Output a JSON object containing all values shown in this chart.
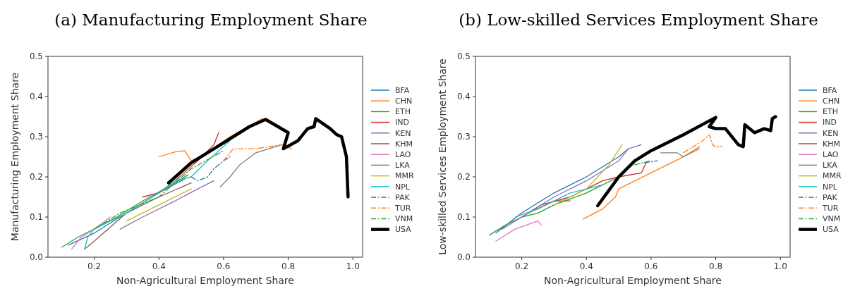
{
  "chart_data": [
    {
      "type": "line",
      "title": "(a) Manufacturing Employment Share",
      "xlabel": "Non-Agricultural Employment Share",
      "ylabel": "Manufacturing Employment Share",
      "xlim": [
        0.057,
        1.03
      ],
      "ylim": [
        0,
        0.5
      ],
      "xticks": [
        {
          "value": 0.2,
          "label": "0.2"
        },
        {
          "value": 0.4,
          "label": "0.4"
        },
        {
          "value": 0.6,
          "label": "0.6"
        },
        {
          "value": 0.8,
          "label": "0.8"
        },
        {
          "value": 1.0,
          "label": "1.0"
        }
      ],
      "yticks": [
        {
          "value": 0,
          "label": "0.0"
        },
        {
          "value": 0.1,
          "label": "0.1"
        },
        {
          "value": 0.2,
          "label": "0.2"
        },
        {
          "value": 0.3,
          "label": "0.3"
        },
        {
          "value": 0.4,
          "label": "0.4"
        },
        {
          "value": 0.5,
          "label": "0.5"
        }
      ],
      "legend": "right",
      "grid": false,
      "series": [
        {
          "name": "BFA",
          "color": "#1f77b4",
          "x": [
            0.12,
            0.2,
            0.3,
            0.4,
            0.48
          ],
          "values": [
            0.03,
            0.06,
            0.11,
            0.16,
            0.195
          ]
        },
        {
          "name": "CHN",
          "color": "#ff7f0e",
          "x": [
            0.4,
            0.45,
            0.48,
            0.5,
            0.55,
            0.62,
            0.72
          ],
          "values": [
            0.25,
            0.262,
            0.265,
            0.24,
            0.26,
            0.3,
            0.345
          ]
        },
        {
          "name": "ETH",
          "color": "#2ca02c",
          "x": [
            0.1,
            0.15,
            0.2,
            0.27,
            0.35,
            0.45,
            0.49
          ],
          "values": [
            0.025,
            0.05,
            0.07,
            0.1,
            0.14,
            0.185,
            0.205
          ]
        },
        {
          "name": "IND",
          "color": "#d62728",
          "x": [
            0.35,
            0.4,
            0.45,
            0.52,
            0.57,
            0.585
          ],
          "values": [
            0.15,
            0.16,
            0.19,
            0.24,
            0.28,
            0.31
          ]
        },
        {
          "name": "KEN",
          "color": "#9467bd",
          "x": [
            0.28,
            0.35,
            0.45,
            0.52,
            0.57
          ],
          "values": [
            0.07,
            0.1,
            0.14,
            0.17,
            0.19
          ]
        },
        {
          "name": "KHM",
          "color": "#8c564b",
          "x": [
            0.17,
            0.2,
            0.3,
            0.4,
            0.5
          ],
          "values": [
            0.02,
            0.04,
            0.11,
            0.15,
            0.185
          ]
        },
        {
          "name": "LAO",
          "color": "#e377c2",
          "x": [
            0.13,
            0.16,
            0.2,
            0.25
          ],
          "values": [
            0.02,
            0.05,
            0.07,
            0.1
          ]
        },
        {
          "name": "LKA",
          "color": "#7f7f7f",
          "x": [
            0.59,
            0.62,
            0.65,
            0.7,
            0.78
          ],
          "values": [
            0.175,
            0.2,
            0.23,
            0.26,
            0.28
          ]
        },
        {
          "name": "MMR",
          "color": "#bcbd22",
          "x": [
            0.3,
            0.4,
            0.5
          ],
          "values": [
            0.09,
            0.13,
            0.17
          ]
        },
        {
          "name": "NPL",
          "color": "#17becf",
          "x": [
            0.17,
            0.18,
            0.2,
            0.3,
            0.38,
            0.45,
            0.5,
            0.55,
            0.62
          ],
          "values": [
            0.02,
            0.05,
            0.07,
            0.11,
            0.15,
            0.19,
            0.2,
            0.24,
            0.29
          ]
        },
        {
          "name": "PAK",
          "color": "#1f77b4",
          "line_style": "dashed",
          "x": [
            0.5,
            0.52,
            0.55,
            0.57,
            0.6,
            0.62
          ],
          "values": [
            0.2,
            0.19,
            0.2,
            0.22,
            0.24,
            0.25
          ]
        },
        {
          "name": "TUR",
          "color": "#ff7f0e",
          "line_style": "dashed",
          "x": [
            0.6,
            0.63,
            0.7,
            0.78,
            0.81
          ],
          "values": [
            0.24,
            0.27,
            0.27,
            0.28,
            0.27
          ]
        },
        {
          "name": "VNM",
          "color": "#2ca02c",
          "line_style": "dashed",
          "x": [
            0.2,
            0.28,
            0.4,
            0.5,
            0.6
          ],
          "values": [
            0.07,
            0.11,
            0.15,
            0.22,
            0.265
          ]
        },
        {
          "name": "USA",
          "color": "#000000",
          "x": [
            0.43,
            0.5,
            0.6,
            0.68,
            0.73,
            0.8,
            0.785,
            0.83,
            0.86,
            0.88,
            0.885,
            0.93,
            0.95,
            0.965,
            0.98,
            0.985
          ],
          "values": [
            0.185,
            0.235,
            0.285,
            0.325,
            0.343,
            0.31,
            0.27,
            0.29,
            0.32,
            0.325,
            0.345,
            0.32,
            0.305,
            0.3,
            0.25,
            0.15
          ]
        }
      ]
    },
    {
      "type": "line",
      "title": "(b) Low-skilled Services Employment Share",
      "xlabel": "Non-Agricultural Employment Share",
      "ylabel": "Low-skilled Services Employment Share",
      "xlim": [
        0.057,
        1.03
      ],
      "ylim": [
        0,
        0.5
      ],
      "xticks": [
        {
          "value": 0.2,
          "label": "0.2"
        },
        {
          "value": 0.4,
          "label": "0.4"
        },
        {
          "value": 0.6,
          "label": "0.6"
        },
        {
          "value": 0.8,
          "label": "0.8"
        },
        {
          "value": 1.0,
          "label": "1.0"
        }
      ],
      "yticks": [
        {
          "value": 0,
          "label": "0.0"
        },
        {
          "value": 0.1,
          "label": "0.1"
        },
        {
          "value": 0.2,
          "label": "0.2"
        },
        {
          "value": 0.3,
          "label": "0.3"
        },
        {
          "value": 0.4,
          "label": "0.4"
        },
        {
          "value": 0.5,
          "label": "0.5"
        }
      ],
      "legend": "right",
      "grid": false,
      "series": [
        {
          "name": "BFA",
          "color": "#1f77b4",
          "x": [
            0.12,
            0.2,
            0.3,
            0.4,
            0.5,
            0.53
          ],
          "values": [
            0.06,
            0.11,
            0.16,
            0.2,
            0.25,
            0.27
          ]
        },
        {
          "name": "CHN",
          "color": "#ff7f0e",
          "x": [
            0.39,
            0.45,
            0.49,
            0.5,
            0.55,
            0.65,
            0.75
          ],
          "values": [
            0.095,
            0.12,
            0.15,
            0.17,
            0.19,
            0.23,
            0.27
          ]
        },
        {
          "name": "ETH",
          "color": "#2ca02c",
          "x": [
            0.1,
            0.15,
            0.2,
            0.25,
            0.3,
            0.4,
            0.5
          ],
          "values": [
            0.055,
            0.08,
            0.1,
            0.11,
            0.13,
            0.16,
            0.2
          ]
        },
        {
          "name": "IND",
          "color": "#d62728",
          "x": [
            0.2,
            0.26,
            0.35,
            0.45,
            0.5,
            0.57,
            0.585
          ],
          "values": [
            0.1,
            0.13,
            0.15,
            0.19,
            0.2,
            0.21,
            0.235
          ]
        },
        {
          "name": "KEN",
          "color": "#9467bd",
          "x": [
            0.14,
            0.2,
            0.3,
            0.4,
            0.5,
            0.53,
            0.57
          ],
          "values": [
            0.07,
            0.1,
            0.15,
            0.19,
            0.24,
            0.27,
            0.28
          ]
        },
        {
          "name": "KHM",
          "color": "#8c564b",
          "x": [
            0.22,
            0.3,
            0.35
          ],
          "values": [
            0.11,
            0.14,
            0.14
          ]
        },
        {
          "name": "LAO",
          "color": "#e377c2",
          "x": [
            0.12,
            0.18,
            0.25,
            0.26
          ],
          "values": [
            0.04,
            0.07,
            0.09,
            0.08
          ]
        },
        {
          "name": "LKA",
          "color": "#7f7f7f",
          "x": [
            0.63,
            0.68,
            0.7,
            0.75
          ],
          "values": [
            0.26,
            0.26,
            0.25,
            0.275
          ]
        },
        {
          "name": "MMR",
          "color": "#bcbd22",
          "x": [
            0.3,
            0.4,
            0.47,
            0.51
          ],
          "values": [
            0.13,
            0.17,
            0.23,
            0.28
          ]
        },
        {
          "name": "NPL",
          "color": "#17becf",
          "x": [
            0.18,
            0.25,
            0.35,
            0.45
          ],
          "values": [
            0.1,
            0.12,
            0.16,
            0.18
          ]
        },
        {
          "name": "PAK",
          "color": "#1f77b4",
          "line_style": "dashed",
          "x": [
            0.58,
            0.62
          ],
          "values": [
            0.235,
            0.24
          ]
        },
        {
          "name": "TUR",
          "color": "#ff7f0e",
          "line_style": "dashed",
          "x": [
            0.7,
            0.76,
            0.78,
            0.79,
            0.8,
            0.82
          ],
          "values": [
            0.26,
            0.29,
            0.305,
            0.28,
            0.275,
            0.275
          ]
        },
        {
          "name": "VNM",
          "color": "#2ca02c",
          "line_style": "dashed",
          "x": [
            0.55,
            0.6
          ],
          "values": [
            0.23,
            0.24
          ]
        },
        {
          "name": "USA",
          "color": "#000000",
          "x": [
            0.435,
            0.5,
            0.55,
            0.6,
            0.7,
            0.8,
            0.78,
            0.8,
            0.83,
            0.87,
            0.885,
            0.89,
            0.92,
            0.95,
            0.97,
            0.975,
            0.985
          ],
          "values": [
            0.128,
            0.2,
            0.24,
            0.265,
            0.305,
            0.348,
            0.325,
            0.32,
            0.32,
            0.28,
            0.275,
            0.33,
            0.31,
            0.32,
            0.315,
            0.345,
            0.35
          ]
        }
      ]
    }
  ]
}
